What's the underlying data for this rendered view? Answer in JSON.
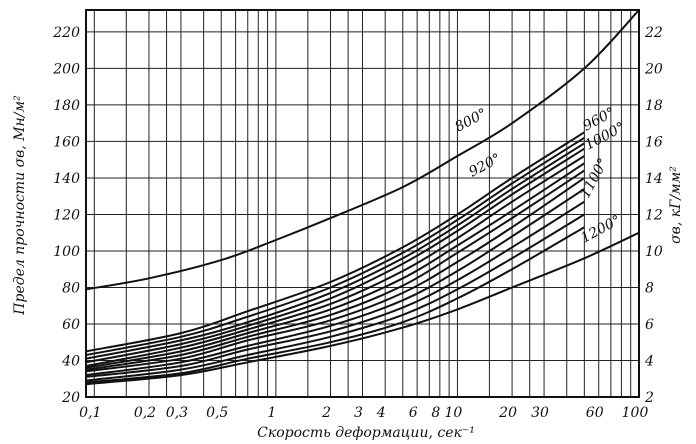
{
  "chart_data": {
    "type": "line",
    "xlabel": "Скорость деформации, сек⁻¹",
    "ylabel_left": "Предел прочности σв, Мн/м²",
    "ylabel_right": "σв, кГ/мм²",
    "x_scale": "log",
    "xlim": [
      0.09,
      100
    ],
    "ylim_left": [
      20,
      232
    ],
    "ylim_right": [
      2,
      23.2
    ],
    "grid": true,
    "x_ticks": [
      {
        "v": 0.1,
        "label": "0,1"
      },
      {
        "v": 0.2,
        "label": "0,2"
      },
      {
        "v": 0.3,
        "label": "0,3"
      },
      {
        "v": 0.5,
        "label": "0,5"
      },
      {
        "v": 1,
        "label": "1"
      },
      {
        "v": 2,
        "label": "2"
      },
      {
        "v": 3,
        "label": "3"
      },
      {
        "v": 4,
        "label": "4"
      },
      {
        "v": 6,
        "label": "6"
      },
      {
        "v": 8,
        "label": "8"
      },
      {
        "v": 10,
        "label": "10"
      },
      {
        "v": 20,
        "label": "20"
      },
      {
        "v": 30,
        "label": "30"
      },
      {
        "v": 60,
        "label": "60"
      },
      {
        "v": 100,
        "label": "100"
      }
    ],
    "x_minor_grid": [
      0.15,
      0.25,
      0.4,
      0.6,
      0.7,
      0.8,
      0.9,
      1.5,
      2.5,
      5,
      7,
      9,
      15,
      25,
      40,
      50,
      70,
      80,
      90
    ],
    "y_ticks_left": [
      20,
      40,
      60,
      80,
      100,
      120,
      140,
      160,
      180,
      200,
      220
    ],
    "y_ticks_right": [
      {
        "v": 2,
        "label": "2"
      },
      {
        "v": 4,
        "label": "4"
      },
      {
        "v": 6,
        "label": "6"
      },
      {
        "v": 8,
        "label": "8"
      },
      {
        "v": 10,
        "label": "10"
      },
      {
        "v": 12,
        "label": "12"
      },
      {
        "v": 14,
        "label": "14"
      },
      {
        "v": 16,
        "label": "16"
      },
      {
        "v": 18,
        "label": "18"
      },
      {
        "v": 20,
        "label": "20"
      },
      {
        "v": 22,
        "label": "22"
      }
    ],
    "series": [
      {
        "name": "800°",
        "x": [
          0.09,
          0.2,
          0.5,
          1,
          2,
          5,
          10,
          20,
          50,
          100
        ],
        "y": [
          79,
          85,
          95,
          106,
          118,
          135,
          152,
          170,
          200,
          232
        ]
      },
      {
        "name": "920°",
        "x": [
          0.09,
          0.3,
          0.7,
          2,
          5,
          10,
          20,
          50
        ],
        "y": [
          45,
          55,
          67,
          83,
          102,
          120,
          140,
          165
        ]
      },
      {
        "name": "",
        "x": [
          0.09,
          0.3,
          0.7,
          2,
          5,
          10,
          20,
          50
        ],
        "y": [
          43,
          53,
          64,
          80,
          99,
          117,
          137,
          162
        ]
      },
      {
        "name": "960°",
        "x": [
          0.09,
          0.3,
          0.7,
          2,
          5,
          10,
          20,
          50
        ],
        "y": [
          41,
          51,
          61,
          77,
          96,
          114,
          134,
          159
        ]
      },
      {
        "name": "",
        "x": [
          0.09,
          0.3,
          0.7,
          2,
          5,
          10,
          20,
          50
        ],
        "y": [
          39,
          49,
          59,
          74,
          93,
          111,
          131,
          156
        ]
      },
      {
        "name": "1000°",
        "x": [
          0.09,
          0.3,
          0.7,
          2,
          5,
          10,
          20,
          50
        ],
        "y": [
          37,
          47,
          57,
          71,
          89,
          107,
          127,
          152
        ]
      },
      {
        "name": "",
        "x": [
          0.09,
          0.3,
          0.7,
          2,
          5,
          10,
          20,
          50
        ],
        "y": [
          36,
          45,
          55,
          68,
          85,
          103,
          122,
          148
        ]
      },
      {
        "name": "",
        "x": [
          0.09,
          0.3,
          0.7,
          2,
          5,
          10,
          20,
          50
        ],
        "y": [
          35,
          43,
          53,
          65,
          81,
          99,
          118,
          144
        ]
      },
      {
        "name": "1100°",
        "x": [
          0.09,
          0.3,
          0.7,
          2,
          5,
          10,
          20,
          50
        ],
        "y": [
          34,
          41,
          51,
          62,
          77,
          94,
          113,
          140
        ]
      },
      {
        "name": "",
        "x": [
          0.09,
          0.3,
          0.7,
          2,
          5,
          10,
          20,
          50
        ],
        "y": [
          32,
          39,
          48,
          59,
          73,
          89,
          108,
          134
        ]
      },
      {
        "name": "",
        "x": [
          0.09,
          0.3,
          0.7,
          2,
          5,
          10,
          20,
          50
        ],
        "y": [
          31,
          37,
          46,
          56,
          69,
          84,
          102,
          127
        ]
      },
      {
        "name": "",
        "x": [
          0.09,
          0.3,
          0.7,
          2,
          5,
          10,
          20,
          50
        ],
        "y": [
          29,
          35,
          43,
          53,
          65,
          79,
          96,
          120
        ]
      },
      {
        "name": "",
        "x": [
          0.09,
          0.3,
          0.7,
          2,
          5,
          10,
          20,
          50
        ],
        "y": [
          28,
          33,
          41,
          50,
          61,
          74,
          90,
          113
        ]
      },
      {
        "name": "1200°",
        "x": [
          0.09,
          0.3,
          0.7,
          2,
          5,
          10,
          20,
          50,
          100
        ],
        "y": [
          27,
          32,
          39,
          48,
          58,
          68,
          80,
          96,
          110
        ]
      }
    ],
    "annotations": [
      "800°",
      "920°",
      "960°",
      "1000°",
      "1100°",
      "1200°"
    ]
  }
}
